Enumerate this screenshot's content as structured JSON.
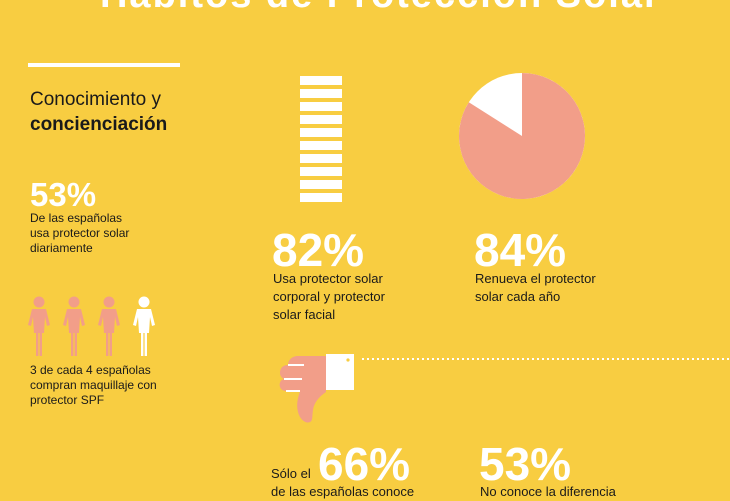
{
  "header": {
    "title": "Hábitos de Protección Solar"
  },
  "section": {
    "title_line1": "Conocimiento y",
    "title_line2": "concienciación"
  },
  "stats": {
    "daily": {
      "value": "53%",
      "text_l1": "De las españolas",
      "text_l2": "usa protector solar",
      "text_l3": "diariamente"
    },
    "makeup": {
      "text_l1": "3 de cada 4 españolas",
      "text_l2": "compran maquillaje con",
      "text_l3": "protector SPF",
      "ratio": 0.75
    },
    "body_face": {
      "value": "82%",
      "text_l1": "Usa protector solar",
      "text_l2": "corporal y protector",
      "text_l3": "solar facial",
      "fraction": 0.82
    },
    "renew": {
      "value": "84%",
      "text_l1": "Renueva el protector",
      "text_l2": "solar cada año",
      "fraction": 0.84
    },
    "knows": {
      "prefix": "Sólo el",
      "value": "66%",
      "text_l2": "de las españolas conoce"
    },
    "diff": {
      "value": "53%",
      "text_l1": "No conoce la diferencia"
    }
  },
  "colors": {
    "background": "#F8CD41",
    "salmon": "#F29E89",
    "white": "#FFFFFF"
  },
  "icons": {
    "women": "woman-icon",
    "thumbs": "thumbs-down-icon",
    "bars": "bar-stack-icon",
    "pie": "pie-chart-icon"
  }
}
